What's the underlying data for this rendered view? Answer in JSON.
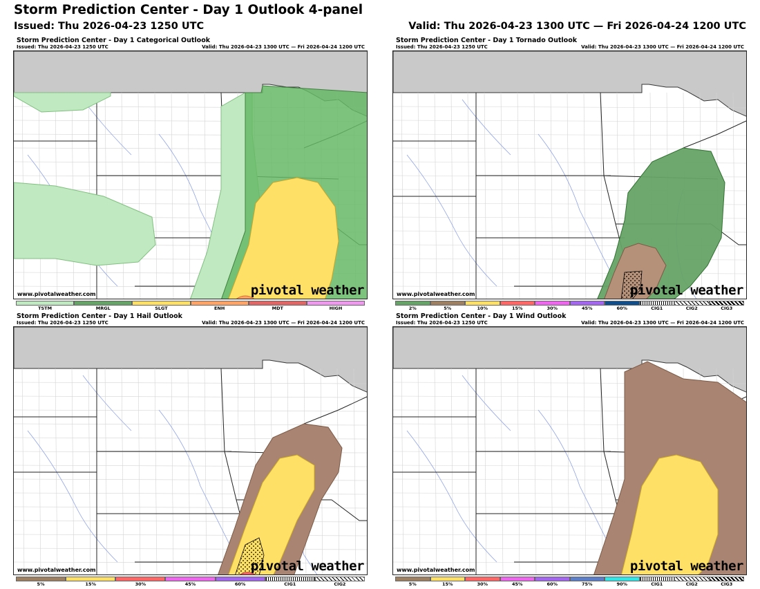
{
  "header": {
    "title": "Storm Prediction Center - Day 1 Outlook 4-panel",
    "issued": "Issued: Thu 2026-04-23 1250 UTC",
    "valid": "Valid: Thu 2026-04-23 1300 UTC — Fri 2026-04-24 1200 UTC"
  },
  "panels": {
    "categorical": {
      "title": "Storm Prediction Center - Day 1 Categorical Outlook",
      "issued": "Issued: Thu 2026-04-23 1250 UTC",
      "valid": "Valid: Thu 2026-04-23 1300 UTC — Fri 2026-04-24 1200 UTC",
      "site": "www.pivotalweather.com",
      "brand": "pivotal weather",
      "legend": [
        {
          "label": "TSTM",
          "color": "#c1e9c1"
        },
        {
          "label": "MRGL",
          "color": "#66a366"
        },
        {
          "label": "SLGT",
          "color": "#ffe066"
        },
        {
          "label": "ENH",
          "color": "#ffa366"
        },
        {
          "label": "MDT",
          "color": "#e06666"
        },
        {
          "label": "HIGH",
          "color": "#ee99ee"
        }
      ]
    },
    "tornado": {
      "title": "Storm Prediction Center - Day 1 Tornado Outlook",
      "issued": "Issued: Thu 2026-04-23 1250 UTC",
      "valid": "Valid: Thu 2026-04-23 1300 UTC — Fri 2026-04-24 1200 UTC",
      "site": "www.pivotalweather.com",
      "brand": "pivotal weather",
      "legend": [
        {
          "label": "2%",
          "color": "#66a366"
        },
        {
          "label": "5%",
          "color": "#9d7f62"
        },
        {
          "label": "10%",
          "color": "#ffe066"
        },
        {
          "label": "15%",
          "color": "#ff6666"
        },
        {
          "label": "30%",
          "color": "#ee66ee"
        },
        {
          "label": "45%",
          "color": "#a366ee"
        },
        {
          "label": "60%",
          "color": "#104e8b"
        },
        {
          "label": "CIG1",
          "color": "hatch-dot"
        },
        {
          "label": "CIG2",
          "color": "hatch-diag"
        },
        {
          "label": "CIG3",
          "color": "hatch-diag2"
        }
      ]
    },
    "hail": {
      "title": "Storm Prediction Center - Day 1 Hail Outlook",
      "issued": "Issued: Thu 2026-04-23 1250 UTC",
      "valid": "Valid: Thu 2026-04-23 1300 UTC — Fri 2026-04-24 1200 UTC",
      "site": "www.pivotalweather.com",
      "brand": "pivotal weather",
      "legend": [
        {
          "label": "5%",
          "color": "#9d7f62"
        },
        {
          "label": "15%",
          "color": "#ffe066"
        },
        {
          "label": "30%",
          "color": "#ff6666"
        },
        {
          "label": "45%",
          "color": "#ee66ee"
        },
        {
          "label": "60%",
          "color": "#a366ee"
        },
        {
          "label": "CIG1",
          "color": "hatch-dot"
        },
        {
          "label": "CIG2",
          "color": "hatch-diag"
        }
      ]
    },
    "wind": {
      "title": "Storm Prediction Center - Day 1 Wind Outlook",
      "issued": "Issued: Thu 2026-04-23 1250 UTC",
      "valid": "Valid: Thu 2026-04-23 1300 UTC — Fri 2026-04-24 1200 UTC",
      "site": "www.pivotalweather.com",
      "brand": "pivotal weather",
      "legend": [
        {
          "label": "5%",
          "color": "#9d7f62"
        },
        {
          "label": "15%",
          "color": "#ffe066"
        },
        {
          "label": "30%",
          "color": "#ff6666"
        },
        {
          "label": "45%",
          "color": "#ee66ee"
        },
        {
          "label": "60%",
          "color": "#a366ee"
        },
        {
          "label": "75%",
          "color": "#5c7ec9"
        },
        {
          "label": "90%",
          "color": "#33e6e6"
        },
        {
          "label": "CIG1",
          "color": "hatch-dot"
        },
        {
          "label": "CIG2",
          "color": "hatch-diag"
        },
        {
          "label": "CIG3",
          "color": "hatch-diag2"
        }
      ]
    }
  }
}
